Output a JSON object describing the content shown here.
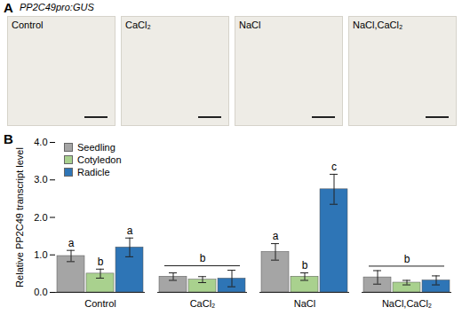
{
  "panel_a": {
    "letter": "A",
    "title": "PP2C49pro:GUS",
    "labels": [
      "Control",
      "CaCl₂",
      "NaCl",
      "NaCl,CaCl₂"
    ]
  },
  "chart_data": {
    "type": "bar",
    "panel": "B",
    "y_label": "Relative PP2C49 transcript level",
    "categories": [
      "Control",
      "CaCl₂",
      "NaCl",
      "NaCl,CaCl₂"
    ],
    "series": [
      {
        "name": "Seedling",
        "color": "#a5a5a5",
        "values": [
          0.97,
          0.42,
          1.08,
          0.4
        ],
        "errors": [
          0.15,
          0.1,
          0.22,
          0.18
        ]
      },
      {
        "name": "Cotyledon",
        "color": "#a9d18e",
        "values": [
          0.5,
          0.34,
          0.42,
          0.26
        ],
        "errors": [
          0.12,
          0.08,
          0.1,
          0.06
        ]
      },
      {
        "name": "Radicle",
        "color": "#2e75b6",
        "values": [
          1.2,
          0.37,
          2.75,
          0.32
        ],
        "errors": [
          0.25,
          0.22,
          0.4,
          0.12
        ]
      }
    ],
    "letters": [
      [
        "a",
        "b",
        "a"
      ],
      [
        "b"
      ],
      [
        "a",
        "b",
        "c"
      ],
      [
        "b"
      ]
    ],
    "ylim": [
      0,
      4
    ],
    "yticks": [
      0,
      1,
      2,
      3,
      4
    ],
    "legend": "top-left"
  }
}
